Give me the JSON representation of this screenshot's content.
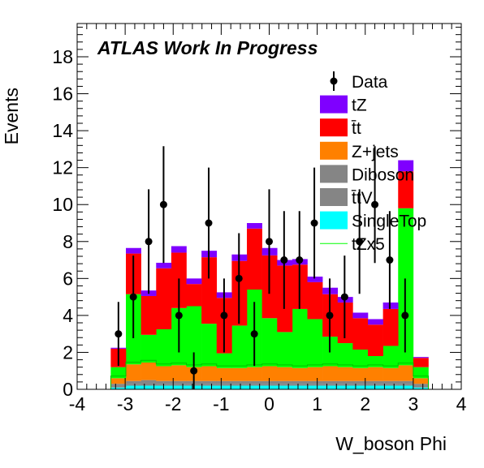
{
  "chart_data": {
    "type": "bar",
    "title": "ATLAS Work In Progress",
    "xlabel": "W_boson Phi",
    "ylabel": "Events",
    "xlim": [
      -4,
      4
    ],
    "ylim": [
      0,
      19.8
    ],
    "x_ticks": [
      "-4",
      "-3",
      "-2",
      "-1",
      "0",
      "1",
      "2",
      "3",
      "4"
    ],
    "y_ticks": [
      "0",
      "2",
      "4",
      "6",
      "8",
      "10",
      "12",
      "14",
      "16",
      "18"
    ],
    "bin_edges": [
      -3.3,
      -2.985,
      -2.67,
      -2.355,
      -2.04,
      -1.725,
      -1.41,
      -1.095,
      -0.78,
      -0.465,
      -0.15,
      0.165,
      0.48,
      0.795,
      1.11,
      1.425,
      1.74,
      2.055,
      2.37,
      2.685,
      3.0,
      3.315
    ],
    "stack": [
      {
        "name": "SingleTop",
        "color": "#00ffff",
        "values": [
          0.1,
          0.2,
          0.2,
          0.2,
          0.2,
          0.2,
          0.2,
          0.2,
          0.2,
          0.2,
          0.2,
          0.2,
          0.2,
          0.2,
          0.2,
          0.2,
          0.2,
          0.2,
          0.2,
          0.2,
          0.1
        ]
      },
      {
        "name": "tt̄V",
        "color": "#858585",
        "values": [
          0.1,
          0.1,
          0.15,
          0.1,
          0.1,
          0.1,
          0.1,
          0.1,
          0.1,
          0.1,
          0.1,
          0.1,
          0.1,
          0.1,
          0.1,
          0.1,
          0.1,
          0.1,
          0.1,
          0.1,
          0.1
        ]
      },
      {
        "name": "Diboson",
        "color": "#858585",
        "values": [
          0.1,
          0.15,
          0.15,
          0.15,
          0.15,
          0.15,
          0.15,
          0.15,
          0.15,
          0.15,
          0.15,
          0.15,
          0.15,
          0.15,
          0.15,
          0.15,
          0.15,
          0.15,
          0.15,
          0.15,
          0.1
        ]
      },
      {
        "name": "Z+jets",
        "color": "#ff8000",
        "values": [
          0.3,
          0.9,
          0.95,
          0.8,
          0.85,
          0.75,
          0.8,
          0.7,
          0.7,
          0.75,
          0.8,
          0.75,
          0.7,
          0.75,
          0.8,
          0.75,
          0.7,
          0.75,
          0.7,
          0.85,
          0.3
        ]
      },
      {
        "name": "tZx5",
        "color": "#00ff00",
        "values": [
          0.6,
          3.8,
          1.5,
          2.0,
          3.1,
          3.3,
          2.3,
          0.8,
          2.3,
          4.2,
          2.6,
          1.9,
          3.2,
          2.6,
          1.6,
          1.3,
          1.0,
          0.6,
          1.2,
          8.5,
          0.6
        ]
      },
      {
        "name": "t̄t",
        "color": "#ff0000",
        "values": [
          1.0,
          2.2,
          2.1,
          3.3,
          3.0,
          1.2,
          3.6,
          3.0,
          3.5,
          3.3,
          3.4,
          3.6,
          2.4,
          2.0,
          2.3,
          2.2,
          1.7,
          1.7,
          2.0,
          2.0,
          0.5
        ]
      },
      {
        "name": "tZ",
        "color": "#7f00ff",
        "values": [
          0.05,
          0.3,
          0.3,
          0.3,
          0.35,
          0.3,
          0.35,
          0.3,
          0.35,
          0.3,
          0.4,
          0.3,
          0.3,
          0.3,
          0.35,
          0.3,
          0.3,
          0.3,
          0.35,
          0.6,
          0.05
        ]
      }
    ],
    "data_points": {
      "name": "Data",
      "x": [
        -3.14,
        -2.83,
        -2.51,
        -2.2,
        -1.88,
        -1.57,
        -1.26,
        -0.94,
        -0.63,
        -0.31,
        0.0,
        0.31,
        0.63,
        0.94,
        1.26,
        1.57,
        1.88,
        2.2,
        2.51,
        2.83,
        3.14
      ],
      "y": [
        3,
        5,
        8,
        10,
        4,
        1,
        9,
        4,
        6,
        3,
        8,
        7,
        7,
        9,
        4,
        5,
        8,
        10,
        7,
        4,
        0
      ]
    },
    "legend": [
      {
        "label": "Data",
        "kind": "marker",
        "color": "#000000"
      },
      {
        "label": "tZ",
        "kind": "box",
        "color": "#7f00ff"
      },
      {
        "label": "t̄t",
        "kind": "box",
        "color": "#ff0000"
      },
      {
        "label": "Z+jets",
        "kind": "box",
        "color": "#ff8000"
      },
      {
        "label": "Diboson",
        "kind": "box",
        "color": "#858585"
      },
      {
        "label": "t̄tV",
        "kind": "box",
        "color": "#858585"
      },
      {
        "label": "SingleTop",
        "kind": "box",
        "color": "#00ffff"
      },
      {
        "label": "tZx5",
        "kind": "line",
        "color": "#00ff00"
      }
    ],
    "legend_position": "top-right"
  }
}
